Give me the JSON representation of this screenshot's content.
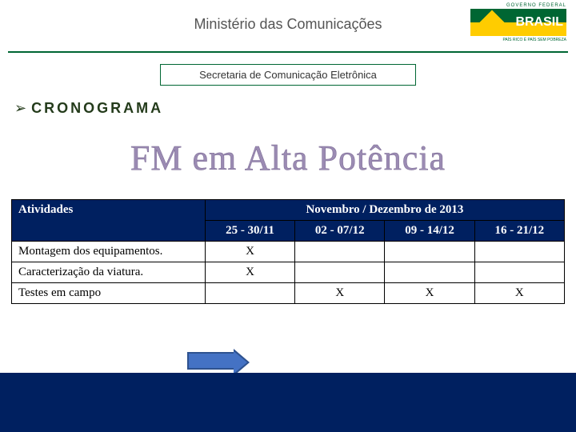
{
  "header": {
    "ministry": "Ministério das Comunicações",
    "logo_top": "GOVERNO FEDERAL",
    "logo_word": "BRASIL",
    "logo_slogan": "PAÍS RICO É PAÍS SEM POBREZA"
  },
  "subtitle": "Secretaria de Comunicação Eletrônica",
  "section": {
    "label": "CRONOGRAMA"
  },
  "main_title": "FM em Alta Potência",
  "table": {
    "activities_header": "Atividades",
    "period_header": "Novembro / Dezembro de 2013",
    "week_headers": [
      "25 - 30/11",
      "02 - 07/12",
      "09 - 14/12",
      "16 - 21/12"
    ],
    "rows": [
      {
        "activity": "Montagem dos equipamentos.",
        "marks": [
          "X",
          "",
          "",
          ""
        ]
      },
      {
        "activity": "Caracterização da viatura.",
        "marks": [
          "X",
          "",
          "",
          ""
        ]
      },
      {
        "activity": "Testes em campo",
        "marks": [
          "",
          "X",
          "X",
          "X"
        ]
      }
    ]
  },
  "colors": {
    "accent_green": "#006633",
    "dark_blue": "#002060",
    "title_lilac": "#9b8bb3",
    "arrow_fill": "#4472c4",
    "arrow_border": "#2e528f"
  }
}
